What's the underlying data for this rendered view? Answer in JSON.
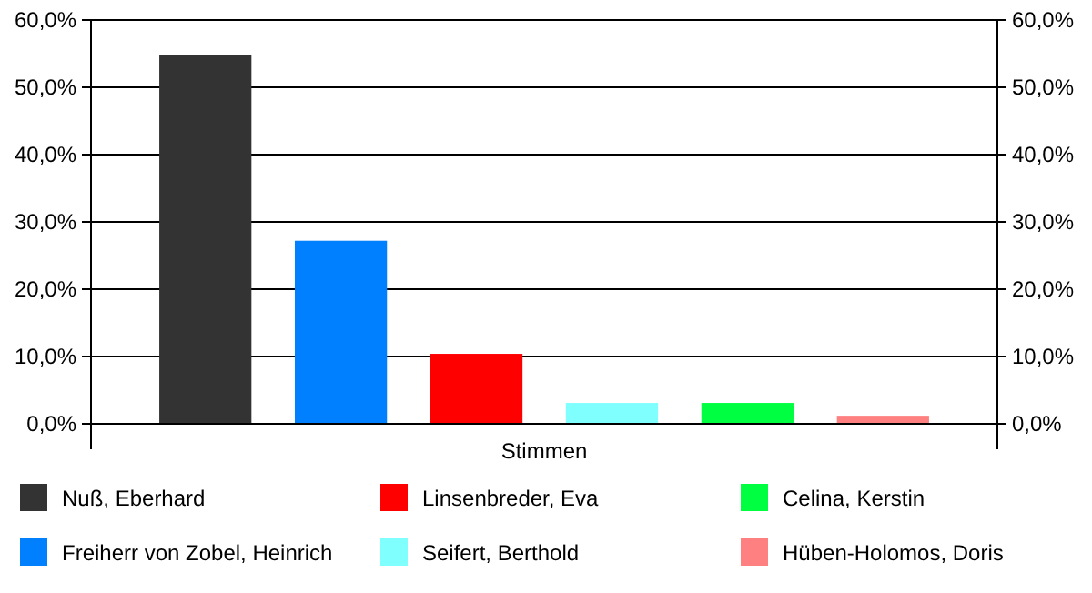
{
  "chart_data": {
    "type": "bar",
    "categories": [
      "Stimmen"
    ],
    "series": [
      {
        "name": "Nuß, Eberhard",
        "color": "#333333",
        "values": [
          54.8
        ]
      },
      {
        "name": "Freiherr von Zobel, Heinrich",
        "color": "#0080ff",
        "values": [
          27.2
        ]
      },
      {
        "name": "Linsenbreder, Eva",
        "color": "#ff0000",
        "values": [
          10.4
        ]
      },
      {
        "name": "Seifert, Berthold",
        "color": "#80ffff",
        "values": [
          3.1
        ]
      },
      {
        "name": "Celina, Kerstin",
        "color": "#00ff40",
        "values": [
          3.1
        ]
      },
      {
        "name": "Hüben-Holomos, Doris",
        "color": "#ff8080",
        "values": [
          1.2
        ]
      }
    ],
    "ylim": [
      0,
      60
    ],
    "yticks": [
      {
        "value": 0,
        "label": "0,0%"
      },
      {
        "value": 10,
        "label": "10,0%"
      },
      {
        "value": 20,
        "label": "20,0%"
      },
      {
        "value": 30,
        "label": "30,0%"
      },
      {
        "value": 40,
        "label": "40,0%"
      },
      {
        "value": 50,
        "label": "50,0%"
      },
      {
        "value": 60,
        "label": "60,0%"
      }
    ],
    "grid": "y",
    "legend": "bottom"
  }
}
